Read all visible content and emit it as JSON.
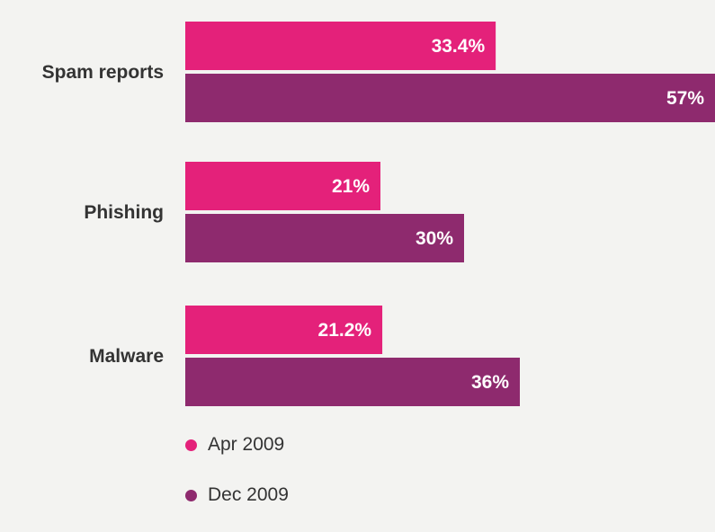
{
  "chart_data": {
    "type": "bar",
    "orientation": "horizontal",
    "categories": [
      "Spam reports",
      "Phishing",
      "Malware"
    ],
    "series": [
      {
        "name": "Apr 2009",
        "color": "#e4217a",
        "values": [
          33.4,
          21,
          21.2
        ],
        "labels": [
          "33.4%",
          "21%",
          "21.2%"
        ]
      },
      {
        "name": "Dec 2009",
        "color": "#8e2a6e",
        "values": [
          57,
          30,
          36
        ],
        "labels": [
          "57%",
          "30%",
          "36%"
        ]
      }
    ],
    "xlim": [
      0,
      57
    ],
    "grid": false,
    "legend": "bottom-left"
  }
}
